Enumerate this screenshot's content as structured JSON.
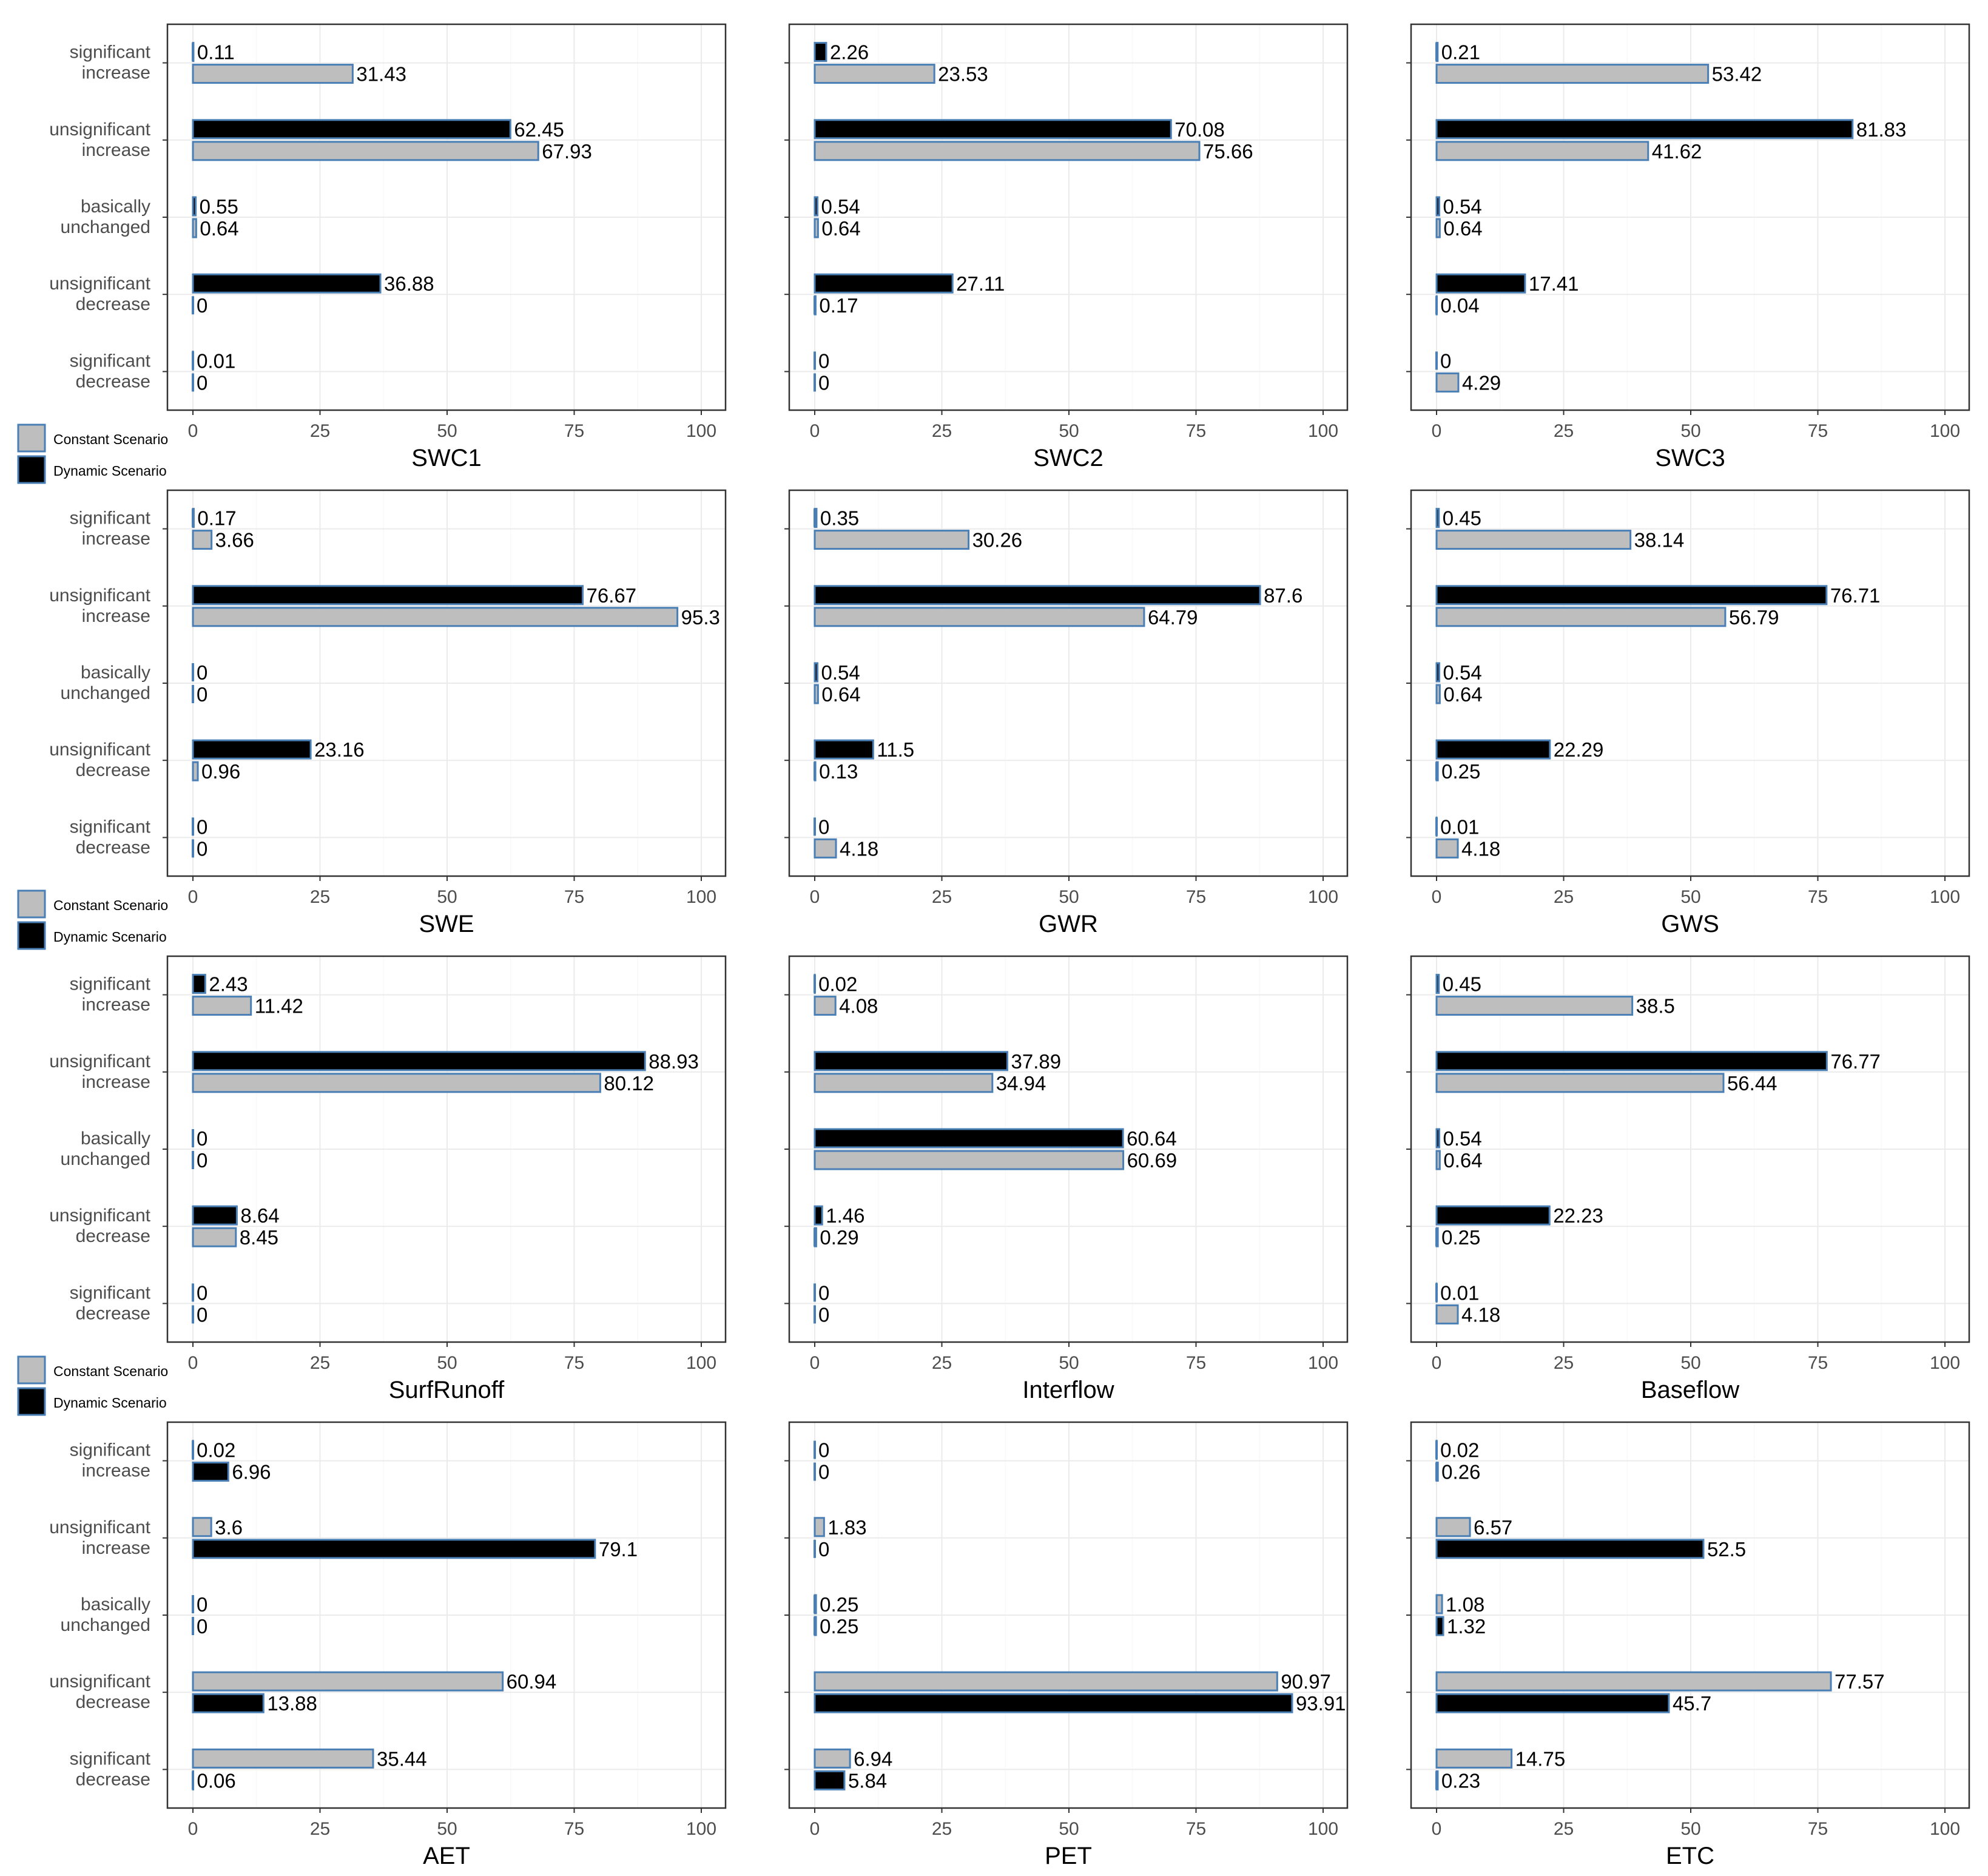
{
  "colors": {
    "constant": "#bebebe",
    "dynamic": "#000000",
    "bar_border": "#4a7fb5",
    "grid": "#ebebeb",
    "panel_border": "#333333"
  },
  "legend": {
    "constant": "Constant Scenario",
    "dynamic": "Dynamic Scenario"
  },
  "categories": [
    "significant increase",
    "unsignificant increase",
    "basically unchanged",
    "unsignificant decrease",
    "significant decrease"
  ],
  "category_lines": [
    [
      "significant",
      "increase"
    ],
    [
      "unsignificant",
      "increase"
    ],
    [
      "basically",
      "unchanged"
    ],
    [
      "unsignificant",
      "decrease"
    ],
    [
      "significant",
      "decrease"
    ]
  ],
  "x_ticks": [
    "0",
    "25",
    "50",
    "75",
    "100"
  ],
  "chart_data": [
    {
      "type": "bar",
      "title": "SWC1",
      "xlim": [
        0,
        100
      ],
      "series": [
        {
          "name": "Dynamic Scenario",
          "values": [
            0.11,
            62.45,
            0.55,
            36.88,
            0.01
          ]
        },
        {
          "name": "Constant Scenario",
          "values": [
            31.43,
            67.93,
            0.64,
            0,
            0
          ]
        }
      ]
    },
    {
      "type": "bar",
      "title": "SWC2",
      "xlim": [
        0,
        100
      ],
      "series": [
        {
          "name": "Dynamic Scenario",
          "values": [
            2.26,
            70.08,
            0.54,
            27.11,
            0
          ]
        },
        {
          "name": "Constant Scenario",
          "values": [
            23.53,
            75.66,
            0.64,
            0.17,
            0
          ]
        }
      ]
    },
    {
      "type": "bar",
      "title": "SWC3",
      "xlim": [
        0,
        100
      ],
      "series": [
        {
          "name": "Dynamic Scenario",
          "values": [
            0.21,
            81.83,
            0.54,
            17.41,
            0
          ]
        },
        {
          "name": "Constant Scenario",
          "values": [
            53.42,
            41.62,
            0.64,
            0.04,
            4.29
          ]
        }
      ]
    },
    {
      "type": "bar",
      "title": "SWE",
      "xlim": [
        0,
        100
      ],
      "series": [
        {
          "name": "Dynamic Scenario",
          "values": [
            0.17,
            76.67,
            0,
            23.16,
            0
          ]
        },
        {
          "name": "Constant Scenario",
          "values": [
            3.66,
            95.3,
            0,
            0.96,
            0
          ]
        }
      ]
    },
    {
      "type": "bar",
      "title": "GWR",
      "xlim": [
        0,
        100
      ],
      "series": [
        {
          "name": "Dynamic Scenario",
          "values": [
            0.35,
            87.6,
            0.54,
            11.5,
            0
          ]
        },
        {
          "name": "Constant Scenario",
          "values": [
            30.26,
            64.79,
            0.64,
            0.13,
            4.18
          ]
        }
      ]
    },
    {
      "type": "bar",
      "title": "GWS",
      "xlim": [
        0,
        100
      ],
      "series": [
        {
          "name": "Dynamic Scenario",
          "values": [
            0.45,
            76.71,
            0.54,
            22.29,
            0.01
          ]
        },
        {
          "name": "Constant Scenario",
          "values": [
            38.14,
            56.79,
            0.64,
            0.25,
            4.18
          ]
        }
      ]
    },
    {
      "type": "bar",
      "title": "SurfRunoff",
      "xlim": [
        0,
        100
      ],
      "series": [
        {
          "name": "Dynamic Scenario",
          "values": [
            2.43,
            88.93,
            0,
            8.64,
            0
          ]
        },
        {
          "name": "Constant Scenario",
          "values": [
            11.42,
            80.12,
            0,
            8.45,
            0
          ]
        }
      ]
    },
    {
      "type": "bar",
      "title": "Interflow",
      "xlim": [
        0,
        100
      ],
      "series": [
        {
          "name": "Dynamic Scenario",
          "values": [
            0.02,
            37.89,
            60.64,
            1.46,
            0
          ]
        },
        {
          "name": "Constant Scenario",
          "values": [
            4.08,
            34.94,
            60.69,
            0.29,
            0
          ]
        }
      ]
    },
    {
      "type": "bar",
      "title": "Baseflow",
      "xlim": [
        0,
        100
      ],
      "series": [
        {
          "name": "Dynamic Scenario",
          "values": [
            0.45,
            76.77,
            0.54,
            22.23,
            0.01
          ]
        },
        {
          "name": "Constant Scenario",
          "values": [
            38.5,
            56.44,
            0.64,
            0.25,
            4.18
          ]
        }
      ]
    },
    {
      "type": "bar",
      "title": "AET",
      "xlim": [
        0,
        100
      ],
      "series": [
        {
          "name": "Constant Scenario",
          "values": [
            0.02,
            3.6,
            0,
            60.94,
            35.44
          ]
        },
        {
          "name": "Dynamic Scenario",
          "values": [
            6.96,
            79.1,
            0,
            13.88,
            0.06
          ]
        }
      ]
    },
    {
      "type": "bar",
      "title": "PET",
      "xlim": [
        0,
        100
      ],
      "series": [
        {
          "name": "Constant Scenario",
          "values": [
            0,
            1.83,
            0.25,
            90.97,
            6.94
          ]
        },
        {
          "name": "Dynamic Scenario",
          "values": [
            0,
            0,
            0.25,
            93.91,
            5.84
          ]
        }
      ]
    },
    {
      "type": "bar",
      "title": "ETC",
      "xlim": [
        0,
        100
      ],
      "series": [
        {
          "name": "Constant Scenario",
          "values": [
            0.02,
            6.57,
            1.08,
            77.57,
            14.75
          ]
        },
        {
          "name": "Dynamic Scenario",
          "values": [
            0.26,
            52.5,
            1.32,
            45.7,
            0.23
          ]
        }
      ]
    }
  ]
}
